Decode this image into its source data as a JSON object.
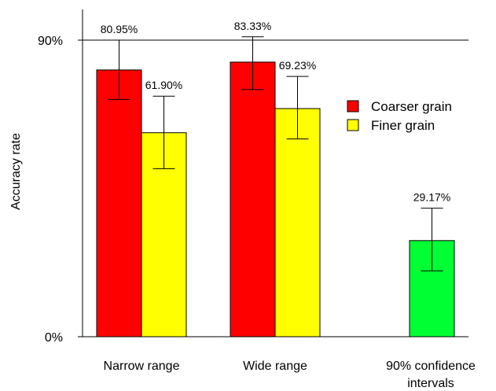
{
  "chart_data": {
    "type": "bar",
    "title": "",
    "xlabel": "",
    "ylabel": "Accuracy rate",
    "ylim": [
      0,
      90
    ],
    "y_ticks": [
      {
        "value": 0,
        "label": "0%"
      },
      {
        "value": 90,
        "label": "90%"
      }
    ],
    "reference_line": 90,
    "grid": false,
    "legend_position": "right",
    "legend": [
      {
        "name": "Coarser grain",
        "color": "#ff0000"
      },
      {
        "name": "Finer grain",
        "color": "#ffff00"
      }
    ],
    "categories": [
      "Narrow range",
      "Wide range",
      "90% confidence\nintervals"
    ],
    "bars": [
      {
        "category": 0,
        "series": "Coarser grain",
        "value": 80.95,
        "label": "80.95%",
        "err_low": 72.0,
        "err_high": 90.0,
        "color": "#ff0000"
      },
      {
        "category": 0,
        "series": "Finer grain",
        "value": 61.9,
        "label": "61.90%",
        "err_low": 51.0,
        "err_high": 73.0,
        "color": "#ffff00"
      },
      {
        "category": 1,
        "series": "Coarser grain",
        "value": 83.33,
        "label": "83.33%",
        "err_low": 75.0,
        "err_high": 91.0,
        "color": "#ff0000"
      },
      {
        "category": 1,
        "series": "Finer grain",
        "value": 69.23,
        "label": "69.23%",
        "err_low": 60.0,
        "err_high": 79.0,
        "color": "#ffff00"
      },
      {
        "category": 2,
        "series": "",
        "value": 29.17,
        "label": "29.17%",
        "err_low": 20.0,
        "err_high": 39.0,
        "color": "#00ff33"
      }
    ]
  }
}
